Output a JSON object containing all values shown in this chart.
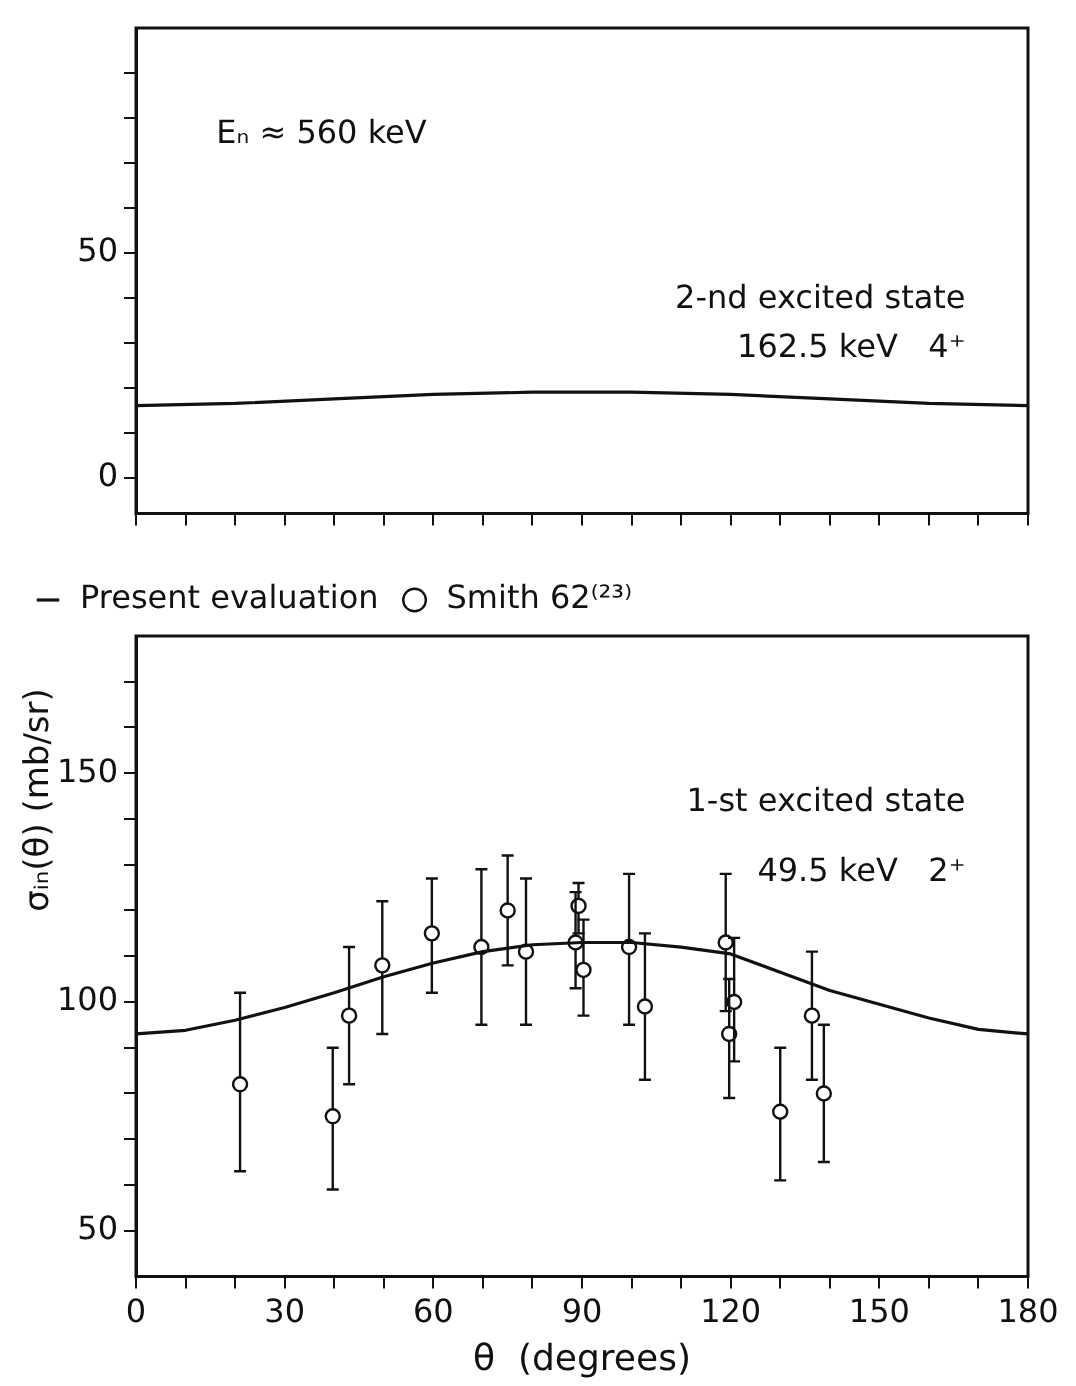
{
  "chart_data": [
    {
      "type": "line",
      "xlim": [
        0,
        180
      ],
      "xticks": [
        0,
        {
          "value": 10,
          "label": null
        },
        {
          "value": 20,
          "label": null
        },
        30,
        {
          "value": 40,
          "label": null
        },
        {
          "value": 50,
          "label": null
        },
        60,
        {
          "value": 70,
          "label": null
        },
        {
          "value": 80,
          "label": null
        },
        90,
        {
          "value": 100,
          "label": null
        },
        {
          "value": 110,
          "label": null
        },
        120,
        {
          "value": 130,
          "label": null
        },
        {
          "value": 140,
          "label": null
        },
        150,
        {
          "value": 160,
          "label": null
        },
        {
          "value": 170,
          "label": null
        },
        180
      ],
      "ylim": [
        -8,
        100
      ],
      "yticks": [
        0,
        {
          "value": 10,
          "label": null
        },
        {
          "value": 20,
          "label": null
        },
        {
          "value": 30,
          "label": null
        },
        {
          "value": 40,
          "label": null
        },
        50,
        {
          "value": 60,
          "label": null
        },
        {
          "value": 70,
          "label": null
        },
        {
          "value": 80,
          "label": null
        },
        {
          "value": 90,
          "label": null
        }
      ],
      "tick_labels": "y",
      "grid": false,
      "legend": false,
      "marker": "none",
      "annotations": [
        "Eₙ ≈ 560 keV",
        "2-nd excited state",
        "162.5 keV   4⁺"
      ],
      "series": [
        {
          "color": "#111111",
          "x": [
            0,
            20,
            40,
            60,
            80,
            100,
            120,
            140,
            160,
            180
          ],
          "values": [
            16,
            16.5,
            17.5,
            18.5,
            19,
            19,
            18.5,
            17.5,
            16.5,
            16
          ]
        }
      ]
    },
    {
      "type": "line",
      "xlabel": "θ  (degrees)",
      "ylabel": "σᵢₙ(θ)   (mb/sr)",
      "xlim": [
        0,
        180
      ],
      "xticks": [
        0,
        {
          "value": 10,
          "label": null
        },
        {
          "value": 20,
          "label": null
        },
        30,
        {
          "value": 40,
          "label": null
        },
        {
          "value": 50,
          "label": null
        },
        60,
        {
          "value": 70,
          "label": null
        },
        {
          "value": 80,
          "label": null
        },
        90,
        {
          "value": 100,
          "label": null
        },
        {
          "value": 110,
          "label": null
        },
        120,
        {
          "value": 130,
          "label": null
        },
        {
          "value": 140,
          "label": null
        },
        150,
        {
          "value": 160,
          "label": null
        },
        {
          "value": 170,
          "label": null
        },
        180
      ],
      "ylim": [
        40,
        180
      ],
      "yticks": [
        50,
        {
          "value": 60,
          "label": null
        },
        {
          "value": 70,
          "label": null
        },
        {
          "value": 80,
          "label": null
        },
        {
          "value": 90,
          "label": null
        },
        100,
        {
          "value": 110,
          "label": null
        },
        {
          "value": 120,
          "label": null
        },
        {
          "value": 130,
          "label": null
        },
        {
          "value": 140,
          "label": null
        },
        150,
        {
          "value": 160,
          "label": null
        },
        {
          "value": 170,
          "label": null
        }
      ],
      "grid": false,
      "legend": "top left",
      "annotations": [
        "1-st excited state",
        "49.5 keV   2⁺"
      ],
      "series": [
        {
          "name": "Present evaluation",
          "type": "line",
          "marker": "none",
          "color": "#111111",
          "x": [
            0,
            10,
            20,
            30,
            40,
            50,
            60,
            70,
            80,
            90,
            100,
            110,
            120,
            130,
            140,
            150,
            160,
            170,
            180
          ],
          "values": [
            93,
            93.8,
            96,
            98.8,
            102,
            105.5,
            108.5,
            111,
            112.5,
            113,
            113,
            112,
            110.5,
            106.5,
            102.5,
            99.5,
            96.5,
            94,
            93
          ]
        },
        {
          "name": "Smith 62⁽²³⁾",
          "type": "scatter",
          "marker": "circle",
          "color": "#111111",
          "x": [
            21,
            39.7,
            43,
            49.7,
            59.7,
            69.7,
            75,
            78.7,
            88.7,
            89.3,
            90.3,
            99.5,
            102.7,
            119,
            119.7,
            120.7,
            130,
            136.4,
            138.8
          ],
          "values": [
            82,
            75,
            97,
            108,
            115,
            112,
            120,
            111,
            113,
            121,
            107,
            112,
            99,
            113,
            93,
            100,
            76,
            97,
            80
          ],
          "errors": [
            [
              63,
              102
            ],
            [
              59,
              90
            ],
            [
              82,
              112
            ],
            [
              93,
              122
            ],
            [
              102,
              127
            ],
            [
              95,
              129
            ],
            [
              108,
              132
            ],
            [
              95,
              127
            ],
            [
              103,
              124
            ],
            [
              115,
              126
            ],
            [
              97,
              118
            ],
            [
              95,
              128
            ],
            [
              83,
              115
            ],
            [
              98,
              128
            ],
            [
              79,
              105
            ],
            [
              87,
              114
            ],
            [
              61,
              90
            ],
            [
              83,
              111
            ],
            [
              65,
              95
            ]
          ]
        }
      ]
    }
  ]
}
